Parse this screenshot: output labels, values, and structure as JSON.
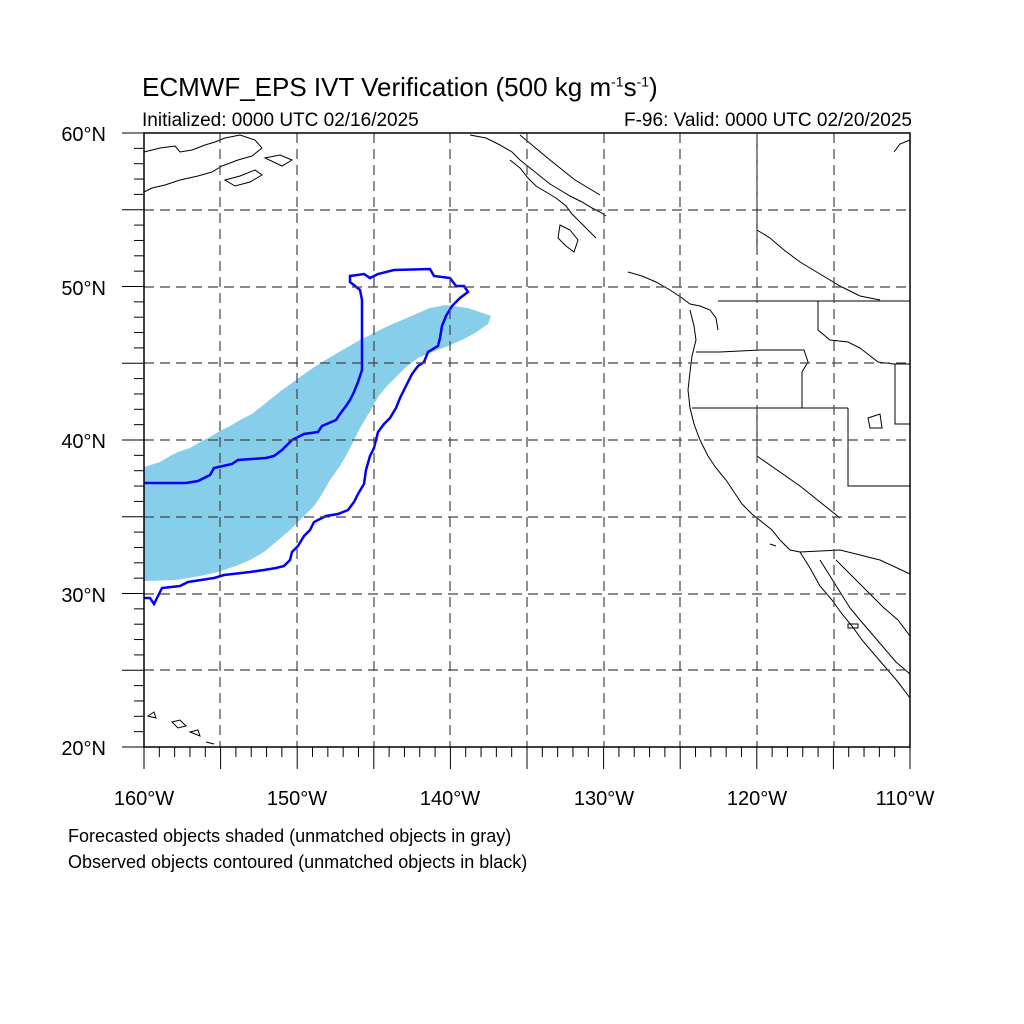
{
  "title": {
    "main": "ECMWF_EPS IVT Verification (500 kg m",
    "sup1": "-1",
    "mid": "s",
    "sup2": "-1",
    "end": ")"
  },
  "initialized": "Initialized: 0000 UTC 02/16/2025",
  "valid": "F-96: Valid: 0000 UTC 02/20/2025",
  "lat_labels": [
    "60°N",
    "50°N",
    "40°N",
    "30°N",
    "20°N"
  ],
  "lon_labels": [
    "160°W",
    "150°W",
    "140°W",
    "130°W",
    "120°W",
    "110°W"
  ],
  "footnotes": [
    "Forecasted objects shaded (unmatched objects in gray)",
    "Observed objects contoured (unmatched objects in black)"
  ],
  "colors": {
    "forecast_fill": "#87ceeb",
    "observed_contour": "#0000ff",
    "coastline": "#000000",
    "grid": "#000000"
  },
  "map_extent": {
    "lon_min": -160,
    "lon_max": -110,
    "lat_min": 20,
    "lat_max": 60
  }
}
